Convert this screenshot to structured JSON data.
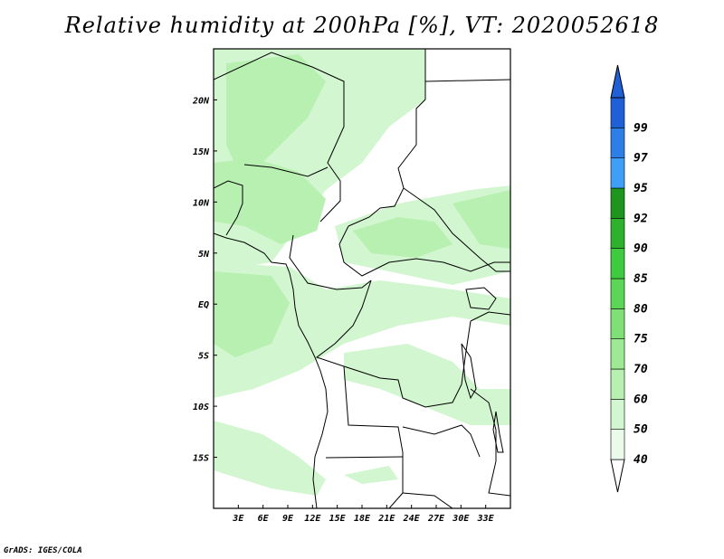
{
  "title": "Relative humidity at 200hPa [%], VT: 2020052618",
  "credit": "GrADS: IGES/COLA",
  "map": {
    "lon_range": [
      0,
      36
    ],
    "lat_range": [
      -20,
      25
    ],
    "lon_ticks": [
      "3E",
      "6E",
      "9E",
      "12E",
      "15E",
      "18E",
      "21E",
      "24E",
      "27E",
      "30E",
      "33E"
    ],
    "lat_ticks": [
      "20N",
      "15N",
      "10N",
      "5N",
      "EQ",
      "5S",
      "10S",
      "15S"
    ]
  },
  "colorbar": {
    "levels": [
      "40",
      "50",
      "60",
      "70",
      "75",
      "80",
      "85",
      "90",
      "92",
      "95",
      "97",
      "99"
    ],
    "colors": [
      "#ebfbea",
      "#d2f6cf",
      "#b7f0b1",
      "#9ee994",
      "#7fe077",
      "#5bd657",
      "#3fca3f",
      "#2eb22e",
      "#1e961e",
      "#3f9ef6",
      "#2d7fe8",
      "#1f60d6"
    ]
  }
}
